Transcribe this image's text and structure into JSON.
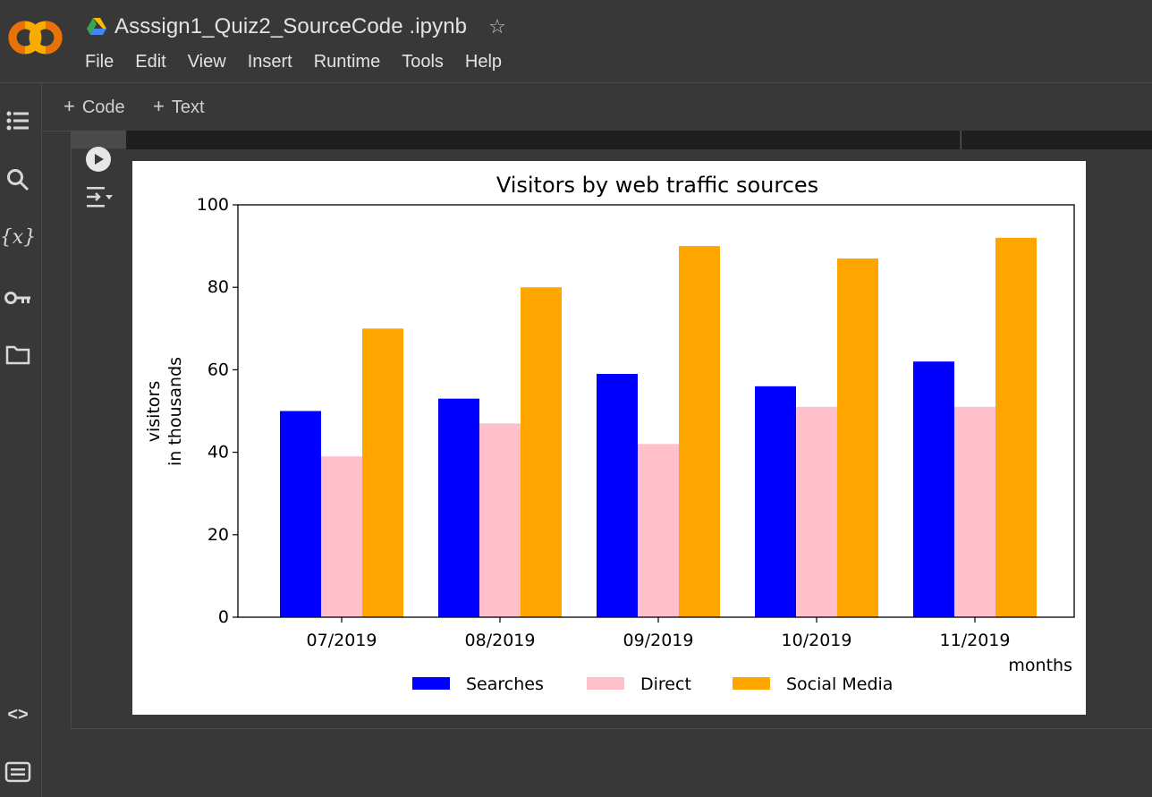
{
  "app": {
    "title": "Asssign1_Quiz2_SourceCode .ipynb",
    "star_icon": "star-outline-icon",
    "logo_icon": "colab-logo-icon",
    "drive_icon": "google-drive-icon"
  },
  "menu": [
    "File",
    "Edit",
    "View",
    "Insert",
    "Runtime",
    "Tools",
    "Help"
  ],
  "toolbar": {
    "code_label": "Code",
    "text_label": "Text",
    "plus": "+"
  },
  "rail": {
    "icons": [
      "table-of-contents-icon",
      "search-icon",
      "variables-icon",
      "secrets-key-icon",
      "files-folder-icon",
      "code-snippets-icon",
      "terminal-icon"
    ],
    "variables_glyph": "{x}",
    "code_glyph": "<>"
  },
  "cell": {
    "run_icon": "play-icon",
    "output_icon": "output-actions-icon"
  },
  "colors": {
    "Searches": "#0000ff",
    "Direct": "#ffc0cb",
    "Social Media": "#ffa500"
  },
  "chart_data": {
    "type": "bar",
    "title": "Visitors by web traffic sources",
    "xlabel": "months",
    "ylabel_line1": "visitors",
    "ylabel_line2": "in thousands",
    "ylim": [
      0,
      100
    ],
    "yticks": [
      "0",
      "20",
      "40",
      "60",
      "80",
      "100"
    ],
    "categories": [
      "07/2019",
      "08/2019",
      "09/2019",
      "10/2019",
      "11/2019"
    ],
    "series": [
      {
        "name": "Searches",
        "values": [
          50,
          53,
          59,
          56,
          62
        ]
      },
      {
        "name": "Direct",
        "values": [
          39,
          47,
          42,
          51,
          51
        ]
      },
      {
        "name": "Social Media",
        "values": [
          70,
          80,
          90,
          87,
          92
        ]
      }
    ],
    "legend": "bottom-center",
    "grid": false
  }
}
